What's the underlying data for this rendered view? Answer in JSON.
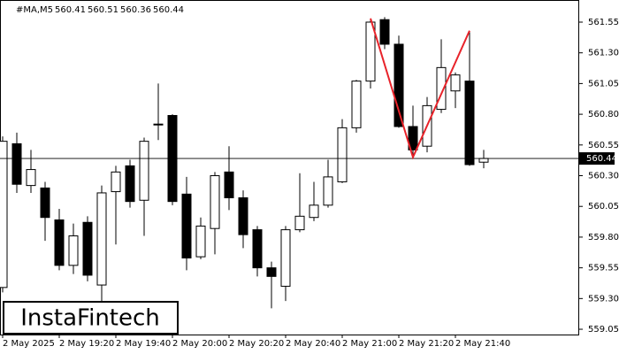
{
  "chart_data": {
    "type": "candlestick",
    "symbol": "#MA,M5",
    "categories": [
      "2 May 2025",
      null,
      null,
      null,
      "2 May 19:20",
      null,
      null,
      null,
      "2 May 19:40",
      null,
      null,
      null,
      "2 May 20:00",
      null,
      null,
      null,
      "2 May 20:20",
      null,
      null,
      null,
      "2 May 20:40",
      null,
      null,
      null,
      "2 May 21:00",
      null,
      null,
      null,
      "2 May 21:20",
      null,
      null,
      null,
      "2 May 21:40",
      null,
      null
    ],
    "open": [
      559.39,
      560.56,
      560.22,
      560.2,
      559.94,
      559.57,
      559.92,
      559.41,
      560.17,
      560.38,
      560.1,
      560.72,
      560.79,
      560.15,
      559.64,
      559.87,
      560.33,
      560.12,
      559.86,
      559.55,
      559.4,
      559.86,
      559.96,
      560.06,
      560.25,
      560.69,
      561.07,
      561.57,
      561.37,
      560.7,
      560.54,
      560.84,
      560.99,
      561.07,
      560.41
    ],
    "high": [
      560.62,
      560.65,
      560.51,
      560.25,
      560.03,
      559.91,
      559.97,
      560.22,
      560.38,
      560.43,
      560.61,
      561.05,
      560.8,
      560.29,
      559.96,
      560.33,
      560.54,
      560.18,
      559.89,
      559.6,
      559.89,
      560.32,
      560.25,
      560.43,
      560.76,
      561.08,
      561.57,
      561.59,
      561.44,
      560.87,
      560.94,
      561.41,
      561.14,
      561.47,
      560.51
    ],
    "low": [
      559.35,
      560.16,
      560.16,
      559.77,
      559.53,
      559.5,
      559.44,
      559.24,
      559.74,
      560.04,
      559.81,
      560.59,
      560.06,
      559.53,
      559.62,
      559.66,
      560.02,
      559.71,
      559.48,
      559.22,
      559.28,
      559.84,
      559.93,
      560.04,
      560.24,
      560.65,
      561.01,
      561.33,
      560.69,
      560.45,
      560.49,
      560.81,
      560.85,
      560.38,
      560.36
    ],
    "close": [
      560.58,
      560.23,
      560.35,
      559.96,
      559.57,
      559.81,
      559.49,
      560.16,
      560.33,
      560.09,
      560.58,
      560.72,
      560.09,
      559.63,
      559.89,
      560.3,
      560.12,
      559.82,
      559.55,
      559.48,
      559.86,
      559.97,
      560.06,
      560.29,
      560.69,
      561.07,
      561.55,
      561.37,
      560.7,
      560.51,
      560.87,
      561.18,
      561.12,
      560.39,
      560.44
    ],
    "ylim": [
      559.007,
      561.73
    ],
    "yticks": [
      559.05,
      {
        "value": 559.3,
        "label": "559.30"
      },
      559.55,
      {
        "value": 559.8,
        "label": "559.80"
      },
      560.05,
      {
        "value": 560.3,
        "label": "560.30"
      },
      560.55,
      {
        "value": 560.8,
        "label": "560.80"
      },
      561.05,
      {
        "value": 561.3,
        "label": "561.30"
      },
      561.55
    ],
    "last_price": 560.44,
    "pattern": {
      "color": "#e8232a",
      "candles": [
        26,
        29,
        33
      ],
      "values": [
        561.58,
        560.45,
        561.48
      ]
    },
    "watermark": "InstaFintech"
  }
}
